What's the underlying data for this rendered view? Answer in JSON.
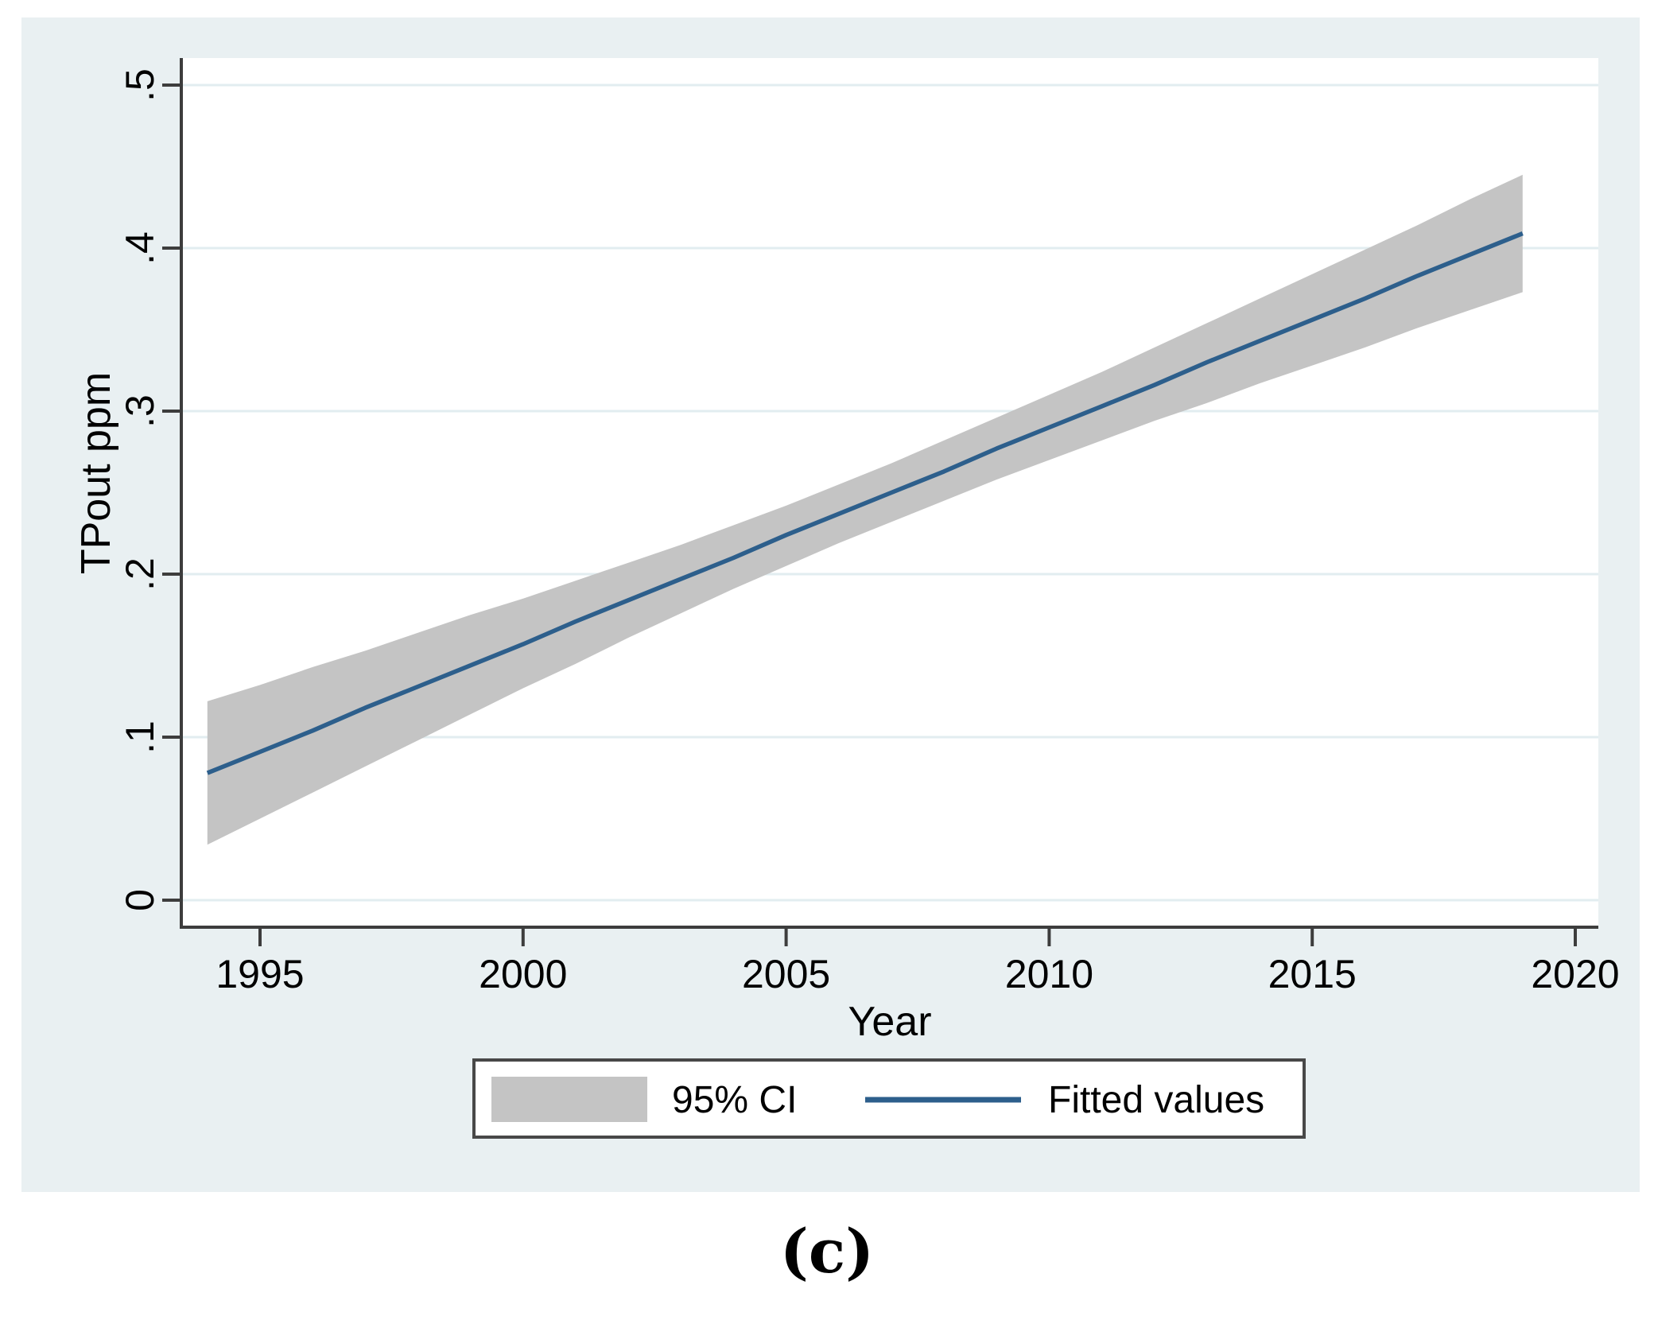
{
  "figure": {
    "caption": "(c)"
  },
  "colors": {
    "chart_background": "#e9f0f2",
    "plot_background": "#ffffff",
    "gridline": "#e2edf0",
    "axis": "#3d3d3d",
    "legend_border": "#484848",
    "text": "#000000"
  },
  "chart_data": {
    "type": "line",
    "title": "",
    "xlabel": "Year",
    "ylabel": "TPout ppm",
    "xlim": [
      1993.5,
      2020.5
    ],
    "ylim": [
      0,
      0.5
    ],
    "grid": "horizontal",
    "x_ticks": {
      "values": [
        1995,
        2000,
        2005,
        2010,
        2015,
        2020
      ],
      "labels": [
        "1995",
        "2000",
        "2005",
        "2010",
        "2015",
        "2020"
      ]
    },
    "y_ticks": {
      "values": [
        0,
        0.1,
        0.2,
        0.3,
        0.4,
        0.5
      ],
      "labels": [
        "0",
        ".1",
        ".2",
        ".3",
        ".4",
        ".5"
      ]
    },
    "x": [
      1994,
      1995,
      1996,
      1997,
      1998,
      1999,
      2000,
      2001,
      2002,
      2003,
      2004,
      2005,
      2006,
      2007,
      2008,
      2009,
      2010,
      2011,
      2012,
      2013,
      2014,
      2015,
      2016,
      2017,
      2018,
      2019
    ],
    "series": [
      {
        "name": "Fitted values",
        "type": "line",
        "color": "#2d5f8c",
        "y": [
          0.078,
          0.091,
          0.104,
          0.118,
          0.131,
          0.144,
          0.157,
          0.171,
          0.184,
          0.197,
          0.21,
          0.224,
          0.237,
          0.25,
          0.263,
          0.277,
          0.29,
          0.303,
          0.316,
          0.33,
          0.343,
          0.356,
          0.369,
          0.383,
          0.396,
          0.409
        ]
      },
      {
        "name": "95% CI",
        "type": "band",
        "color": "#c4c4c4",
        "lower": [
          0.034,
          0.05,
          0.066,
          0.082,
          0.098,
          0.114,
          0.13,
          0.145,
          0.161,
          0.176,
          0.191,
          0.205,
          0.219,
          0.232,
          0.245,
          0.258,
          0.27,
          0.282,
          0.294,
          0.305,
          0.317,
          0.328,
          0.339,
          0.351,
          0.362,
          0.373
        ],
        "upper": [
          0.122,
          0.132,
          0.143,
          0.153,
          0.164,
          0.175,
          0.185,
          0.196,
          0.207,
          0.218,
          0.23,
          0.242,
          0.255,
          0.268,
          0.282,
          0.296,
          0.31,
          0.324,
          0.339,
          0.354,
          0.369,
          0.384,
          0.399,
          0.414,
          0.43,
          0.445
        ]
      }
    ],
    "legend": {
      "position": "bottom-center",
      "items": [
        {
          "label": "95% CI",
          "swatch": "area"
        },
        {
          "label": "Fitted values",
          "swatch": "line"
        }
      ]
    }
  }
}
